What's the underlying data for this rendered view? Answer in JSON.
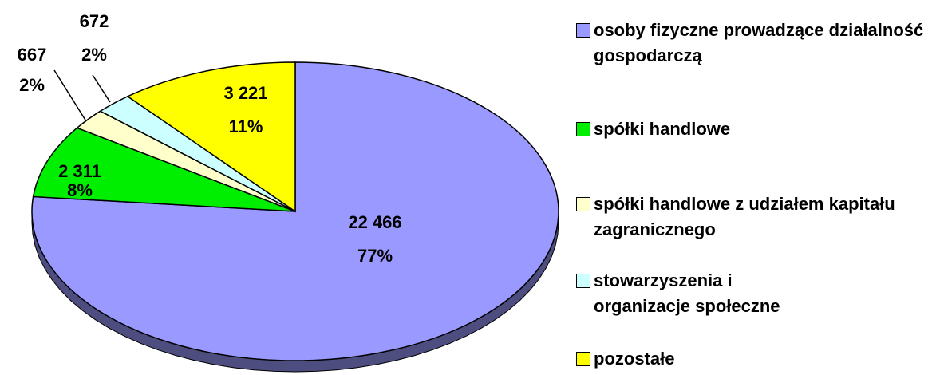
{
  "chart_data": {
    "type": "pie",
    "categories": [
      "osoby fizyczne prowadzące działalność gospodarczą",
      "spółki handlowe",
      "spółki handlowe z udziałem kapitału zagranicznego",
      "stowarzyszenia i organizacje społeczne",
      "pozostałe"
    ],
    "values": [
      22466,
      2311,
      667,
      672,
      3221
    ],
    "value_labels": [
      "22 466",
      "2 311",
      "667",
      "672",
      "3 221"
    ],
    "percents": [
      77,
      8,
      2,
      2,
      11
    ],
    "percent_labels": [
      "77%",
      "8%",
      "2%",
      "2%",
      "11%"
    ],
    "colors": [
      "#9999ff",
      "#00ee00",
      "#ffffcc",
      "#ccffff",
      "#ffff00"
    ]
  }
}
